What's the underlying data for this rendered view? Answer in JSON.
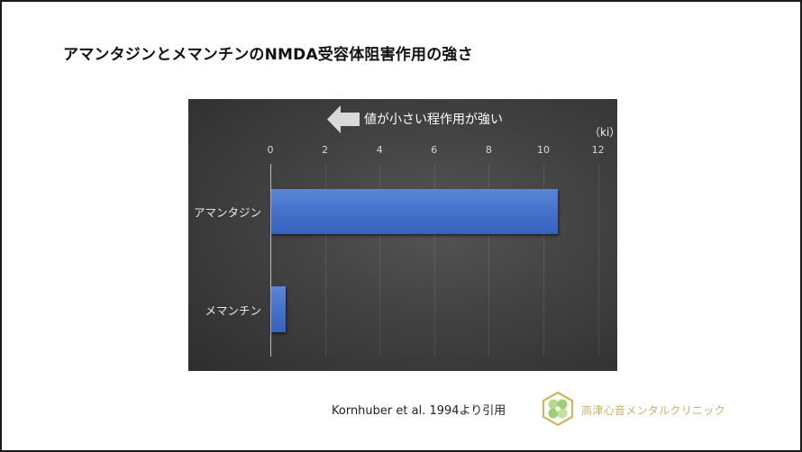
{
  "slide": {
    "title": "アマンタジンとメマンチンのNMDA受容体阻害作用の強さ",
    "citation": "Kornhuber et al. 1994より引用",
    "clinic_name": "高津心音メンタルクリニック",
    "logo_icon": "clover-hexagon-logo-icon"
  },
  "chart": {
    "annotation": "値が小さい程作用が強い",
    "annotation_icon": "left-arrow-icon",
    "unit": "（ki）",
    "ticks": [
      "0",
      "2",
      "4",
      "6",
      "8",
      "10",
      "12"
    ],
    "categories": [
      "アマンタジン",
      "メマンチン"
    ]
  },
  "colors": {
    "bar": "#4572cc",
    "chart_background": "#444444",
    "clinic_text": "#c2b46e"
  },
  "chart_data": {
    "type": "bar",
    "orientation": "horizontal",
    "title": "アマンタジンとメマンチンのNMDA受容体阻害作用の強さ",
    "categories": [
      "アマンタジン",
      "メマンチン"
    ],
    "values": [
      10.5,
      0.54
    ],
    "xlabel": "（ki）",
    "ylabel": "",
    "xlim": [
      0,
      12
    ],
    "xticks": [
      0,
      2,
      4,
      6,
      8,
      10,
      12
    ],
    "x_axis_position": "top",
    "grid": true,
    "annotations": [
      "値が小さい程作用が強い"
    ],
    "source": "Kornhuber et al. 1994より引用"
  }
}
